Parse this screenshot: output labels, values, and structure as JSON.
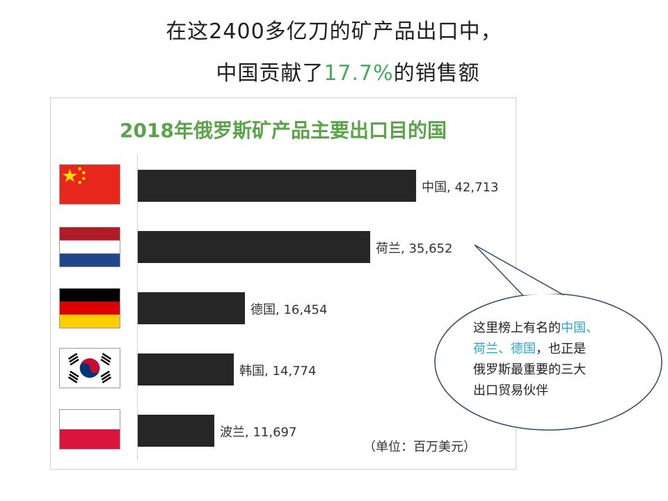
{
  "headline": {
    "line1": "在这2400多亿刀的矿产品出口中，",
    "line2_prefix": "中国贡献了",
    "line2_highlight": "17.7%",
    "line2_suffix": "的销售额"
  },
  "chart_data": {
    "type": "bar",
    "orientation": "horizontal",
    "title": "2018年俄罗斯矿产品主要出口目的国",
    "categories": [
      "中国",
      "荷兰",
      "德国",
      "韩国",
      "波兰"
    ],
    "values": [
      42713,
      35652,
      16454,
      14774,
      11697
    ],
    "value_labels": [
      "42,713",
      "35,652",
      "16,454",
      "14,774",
      "11,697"
    ],
    "unit_note": "（单位：百万美元）",
    "bar_color": "#262626",
    "title_color": "#5aa348",
    "grid": false,
    "legend": "none"
  },
  "flags": [
    {
      "country": "中国",
      "icon": "china-flag-icon"
    },
    {
      "country": "荷兰",
      "icon": "netherlands-flag-icon"
    },
    {
      "country": "德国",
      "icon": "germany-flag-icon"
    },
    {
      "country": "韩国",
      "icon": "south-korea-flag-icon"
    },
    {
      "country": "波兰",
      "icon": "poland-flag-icon"
    }
  ],
  "callout": {
    "line1_prefix": "这里榜上有名的",
    "line1_highlight": "中国、",
    "line2_highlight": "荷兰、德国",
    "line2_suffix": "，也正是",
    "line3": "俄罗斯最重要的三大",
    "line4": "出口贸易伙伴",
    "highlight_color": "#28a8c8"
  }
}
